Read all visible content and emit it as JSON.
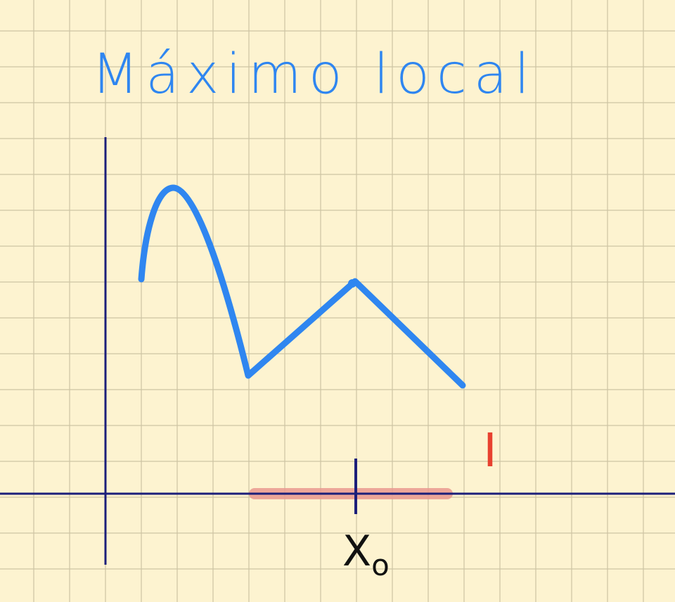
{
  "title": "Máximo local",
  "point_label": "X",
  "point_subscript": "o",
  "interval_label": "I",
  "colors": {
    "paper": "#fdf3d0",
    "grid": "#cdc4a3",
    "axis": "#1c1f7a",
    "curve": "#2f86f0",
    "interval": "#eb9a90",
    "label_red": "#e8412f",
    "label_dark": "#111111"
  }
}
